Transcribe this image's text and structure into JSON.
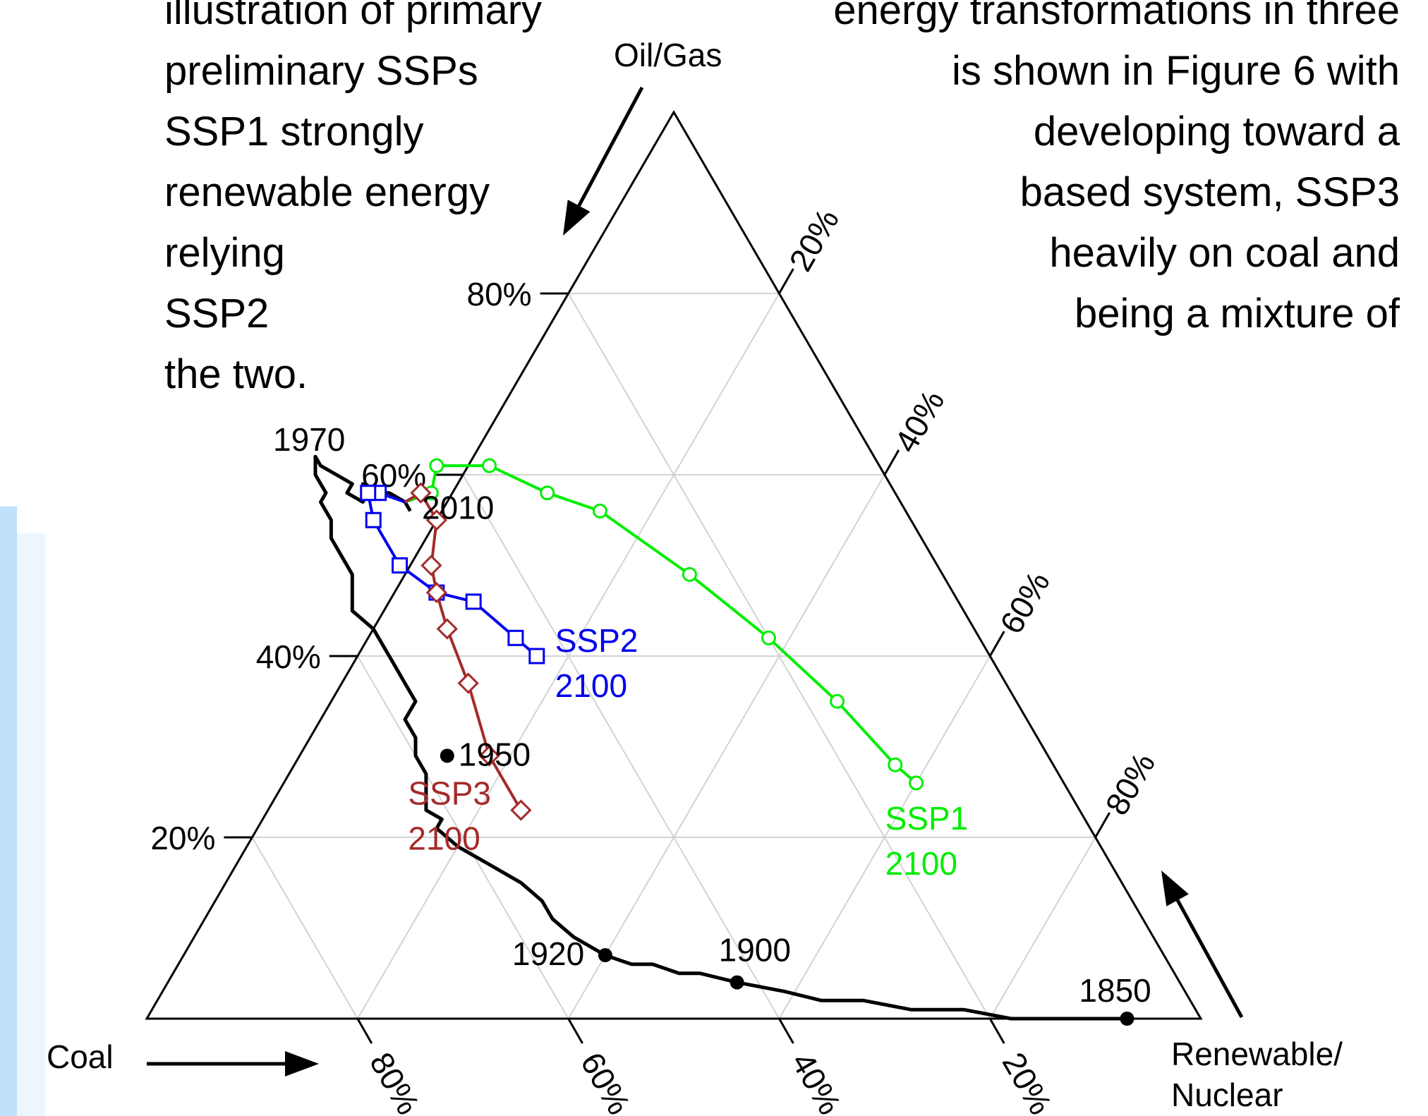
{
  "paragraph": {
    "left_lines": [
      "illustration of primary",
      "preliminary SSPs",
      "SSP1 strongly",
      "renewable energy",
      "relying",
      "SSP2",
      "the two."
    ],
    "right_lines": [
      "energy transformations in three",
      "is shown in Figure 6 with",
      "developing toward a",
      "based system, SSP3",
      "heavily on coal and",
      "being a mixture of"
    ]
  },
  "chart_data": {
    "type": "ternary",
    "axes": {
      "oil_gas": {
        "label": "Oil/Gas",
        "ticks": [
          "20%",
          "40%",
          "60%",
          "80%"
        ]
      },
      "coal": {
        "label": "Coal",
        "ticks": [
          "80%",
          "60%",
          "40%",
          "20%"
        ]
      },
      "renewable_nuclear": {
        "label_lines": [
          "Renewable/",
          "Nuclear"
        ],
        "ticks": [
          "20%",
          "40%",
          "60%",
          "80%"
        ]
      }
    },
    "grid": true,
    "colors": {
      "historical": "#000000",
      "SSP1": "#00ee00",
      "SSP2": "#0000ee",
      "SSP3": "#a52a2a",
      "grid": "#d3d3d3"
    },
    "historical": {
      "points": [
        [
          0.07,
          0.0
        ],
        [
          0.12,
          0.0
        ],
        [
          0.18,
          0.0
        ],
        [
          0.22,
          0.01
        ],
        [
          0.27,
          0.01
        ],
        [
          0.31,
          0.02
        ],
        [
          0.35,
          0.02
        ],
        [
          0.38,
          0.03
        ],
        [
          0.42,
          0.04
        ],
        [
          0.45,
          0.05
        ],
        [
          0.47,
          0.05
        ],
        [
          0.49,
          0.06
        ],
        [
          0.51,
          0.06
        ],
        [
          0.53,
          0.07
        ],
        [
          0.54,
          0.08
        ],
        [
          0.55,
          0.09
        ],
        [
          0.56,
          0.11
        ],
        [
          0.56,
          0.13
        ],
        [
          0.57,
          0.15
        ],
        [
          0.58,
          0.16
        ],
        [
          0.59,
          0.17
        ],
        [
          0.6,
          0.18
        ],
        [
          0.61,
          0.19
        ],
        [
          0.62,
          0.21
        ],
        [
          0.61,
          0.22
        ],
        [
          0.62,
          0.23
        ],
        [
          0.61,
          0.25
        ],
        [
          0.6,
          0.27
        ],
        [
          0.6,
          0.29
        ],
        [
          0.59,
          0.31
        ],
        [
          0.59,
          0.33
        ],
        [
          0.58,
          0.34
        ],
        [
          0.57,
          0.35
        ],
        [
          0.57,
          0.37
        ],
        [
          0.57,
          0.39
        ],
        [
          0.57,
          0.41
        ],
        [
          0.57,
          0.43
        ],
        [
          0.58,
          0.45
        ],
        [
          0.57,
          0.47
        ],
        [
          0.56,
          0.49
        ],
        [
          0.56,
          0.51
        ],
        [
          0.56,
          0.53
        ],
        [
          0.55,
          0.55
        ],
        [
          0.55,
          0.57
        ],
        [
          0.54,
          0.58
        ],
        [
          0.54,
          0.59
        ],
        [
          0.54,
          0.6
        ],
        [
          0.53,
          0.62
        ],
        [
          0.53,
          0.61
        ],
        [
          0.52,
          0.6
        ],
        [
          0.51,
          0.59
        ],
        [
          0.52,
          0.58
        ],
        [
          0.51,
          0.57
        ],
        [
          0.5,
          0.58
        ],
        [
          0.5,
          0.59
        ],
        [
          0.49,
          0.58
        ],
        [
          0.48,
          0.58
        ],
        [
          0.47,
          0.57
        ],
        [
          0.47,
          0.56
        ]
      ],
      "labels": [
        {
          "year": "1850",
          "point": [
            0.07,
            0.0
          ]
        },
        {
          "year": "1900",
          "point": [
            0.42,
            0.04
          ]
        },
        {
          "year": "1920",
          "point": [
            0.53,
            0.07
          ]
        },
        {
          "year": "1950",
          "point": [
            0.57,
            0.29
          ]
        },
        {
          "year": "1970",
          "point": [
            0.54,
            0.6
          ]
        },
        {
          "year": "2010",
          "point": [
            0.47,
            0.57
          ]
        }
      ]
    },
    "series": [
      {
        "name": "SSP1",
        "year": "2100",
        "marker": "circle",
        "points": [
          [
            0.47,
            0.57
          ],
          [
            0.44,
            0.58
          ],
          [
            0.42,
            0.61
          ],
          [
            0.37,
            0.61
          ],
          [
            0.33,
            0.58
          ],
          [
            0.29,
            0.56
          ],
          [
            0.24,
            0.49
          ],
          [
            0.2,
            0.42
          ],
          [
            0.17,
            0.35
          ],
          [
            0.15,
            0.28
          ],
          [
            0.14,
            0.26
          ]
        ]
      },
      {
        "name": "SSP2",
        "year": "2100",
        "marker": "square",
        "points": [
          [
            0.47,
            0.57
          ],
          [
            0.49,
            0.58
          ],
          [
            0.5,
            0.58
          ],
          [
            0.51,
            0.55
          ],
          [
            0.51,
            0.5
          ],
          [
            0.49,
            0.47
          ],
          [
            0.46,
            0.46
          ],
          [
            0.44,
            0.42
          ],
          [
            0.43,
            0.4
          ]
        ]
      },
      {
        "name": "SSP3",
        "year": "2100",
        "marker": "diamond",
        "points": [
          [
            0.47,
            0.57
          ],
          [
            0.45,
            0.58
          ],
          [
            0.45,
            0.55
          ],
          [
            0.48,
            0.5
          ],
          [
            0.49,
            0.47
          ],
          [
            0.5,
            0.43
          ],
          [
            0.51,
            0.37
          ],
          [
            0.53,
            0.29
          ],
          [
            0.53,
            0.23
          ]
        ]
      }
    ]
  }
}
